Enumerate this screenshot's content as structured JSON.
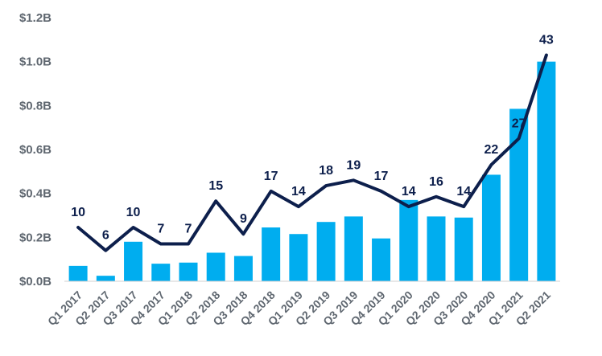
{
  "chart_data": {
    "type": "bar",
    "categories": [
      "Q1 2017",
      "Q2 2017",
      "Q3 2017",
      "Q4 2017",
      "Q1 2018",
      "Q2 2018",
      "Q3 2018",
      "Q4 2018",
      "Q1 2019",
      "Q2 2019",
      "Q3 2019",
      "Q4 2019",
      "Q1 2020",
      "Q2 2020",
      "Q3 2020",
      "Q4 2020",
      "Q1 2021",
      "Q2 2021"
    ],
    "series": [
      {
        "type": "bar",
        "values": [
          0.07,
          0.025,
          0.18,
          0.08,
          0.085,
          0.13,
          0.115,
          0.245,
          0.215,
          0.27,
          0.295,
          0.195,
          0.37,
          0.295,
          0.29,
          0.485,
          0.785,
          1.0
        ],
        "color": "#00adef"
      },
      {
        "type": "line",
        "axis_value": [
          0.245,
          0.14,
          0.245,
          0.17,
          0.17,
          0.365,
          0.215,
          0.41,
          0.34,
          0.435,
          0.46,
          0.41,
          0.34,
          0.385,
          0.34,
          0.53,
          0.65,
          1.03
        ],
        "labels": [
          "10",
          "6",
          "10",
          "7",
          "7",
          "15",
          "9",
          "17",
          "14",
          "18",
          "19",
          "17",
          "14",
          "16",
          "14",
          "22",
          "27",
          "43"
        ],
        "color": "#0d1f4c"
      }
    ],
    "y_ticks": [
      "$0.0B",
      "$0.2B",
      "$0.4B",
      "$0.6B",
      "$0.8B",
      "$1.0B",
      "$1.2B"
    ],
    "ylim": [
      0,
      1.2
    ],
    "grid": false,
    "legend": "none"
  }
}
